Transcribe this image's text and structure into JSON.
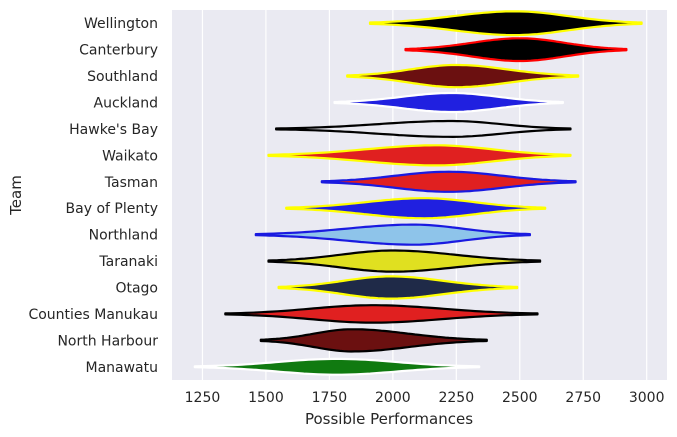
{
  "chart_data": {
    "type": "violin",
    "orientation": "horizontal",
    "xlabel": "Possible Performances",
    "ylabel": "Team",
    "xlim": [
      1130,
      3080
    ],
    "xticks": [
      1250,
      1500,
      1750,
      2000,
      2250,
      2500,
      2750,
      3000
    ],
    "grid": true,
    "background": "#eaeaf2",
    "series": [
      {
        "team": "Wellington",
        "min": 1910,
        "max": 2980,
        "peak": 2480,
        "width": 0.45,
        "fill": "#000000",
        "edge": "#ffff00"
      },
      {
        "team": "Canterbury",
        "min": 2050,
        "max": 2920,
        "peak": 2500,
        "width": 0.43,
        "fill": "#000000",
        "edge": "#ff0000"
      },
      {
        "team": "Southland",
        "min": 1820,
        "max": 2730,
        "peak": 2250,
        "width": 0.42,
        "fill": "#6b1010",
        "edge": "#ffff00"
      },
      {
        "team": "Auckland",
        "min": 1770,
        "max": 2670,
        "peak": 2230,
        "width": 0.36,
        "fill": "#2020e0",
        "edge": "#ffffff"
      },
      {
        "team": "Hawke's Bay",
        "min": 1540,
        "max": 2700,
        "peak": 2230,
        "width": 0.3,
        "fill": "#eaeaf2",
        "edge": "#000000"
      },
      {
        "team": "Waikato",
        "min": 1510,
        "max": 2700,
        "peak": 2170,
        "width": 0.38,
        "fill": "#e02020",
        "edge": "#ffff00"
      },
      {
        "team": "Tasman",
        "min": 1720,
        "max": 2720,
        "peak": 2220,
        "width": 0.38,
        "fill": "#e02020",
        "edge": "#1a1ae0"
      },
      {
        "team": "Bay of Plenty",
        "min": 1580,
        "max": 2600,
        "peak": 2120,
        "width": 0.38,
        "fill": "#2020e0",
        "edge": "#ffff00"
      },
      {
        "team": "Northland",
        "min": 1460,
        "max": 2540,
        "peak": 2080,
        "width": 0.38,
        "fill": "#8ec4ea",
        "edge": "#1a1ae0"
      },
      {
        "team": "Taranaki",
        "min": 1510,
        "max": 2580,
        "peak": 2000,
        "width": 0.4,
        "fill": "#e0e020",
        "edge": "#000000"
      },
      {
        "team": "Otago",
        "min": 1550,
        "max": 2490,
        "peak": 1990,
        "width": 0.42,
        "fill": "#1f2a48",
        "edge": "#ffff00"
      },
      {
        "team": "Counties Manukau",
        "min": 1340,
        "max": 2570,
        "peak": 1920,
        "width": 0.33,
        "fill": "#e02020",
        "edge": "#000000"
      },
      {
        "team": "North Harbour",
        "min": 1480,
        "max": 2370,
        "peak": 1840,
        "width": 0.42,
        "fill": "#6b1010",
        "edge": "#000000"
      },
      {
        "team": "Manawatu",
        "min": 1220,
        "max": 2340,
        "peak": 1780,
        "width": 0.3,
        "fill": "#107a10",
        "edge": "#ffffff"
      }
    ]
  }
}
